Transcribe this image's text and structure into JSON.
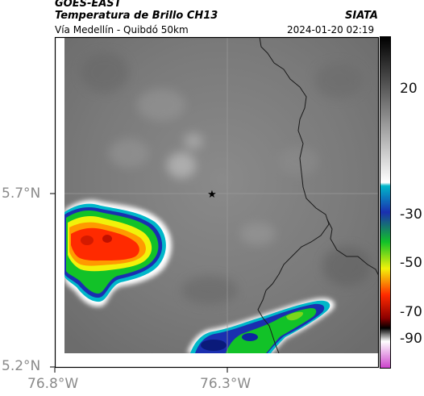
{
  "header": {
    "satellite": "GOES-EAST",
    "product": "Temperatura de Brillo CH13",
    "route": "Vía Medellín - Quibdó 50km",
    "agency": "SIATA",
    "datetime": "2024-01-20 02:19"
  },
  "map": {
    "lat_ticks": [
      "5.7°N",
      "5.2°N"
    ],
    "lon_ticks": [
      "76.8°W",
      "76.3°W"
    ],
    "marker": "star",
    "colors": {
      "background_gray": "#7a7a7a",
      "boundary": "#1a1a1a",
      "grid": "#9a9a9a"
    }
  },
  "colorbar": {
    "ticks": [
      "20",
      "-30",
      "-50",
      "-70",
      "-90"
    ],
    "stops": [
      "#000000",
      "#ffffff",
      "#00b7c9",
      "#1a2fb0",
      "#12c228",
      "#f2f20a",
      "#ff2a00",
      "#8c0000",
      "#000000",
      "#ffffff",
      "#cc44cc"
    ]
  }
}
